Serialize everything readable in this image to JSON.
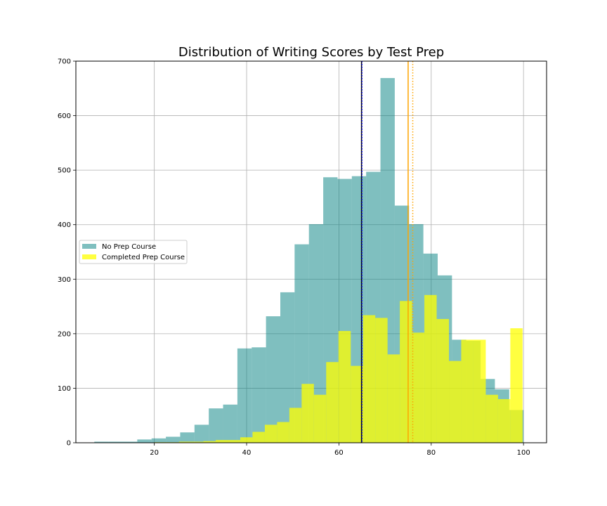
{
  "chart_data": {
    "type": "histogram",
    "title": "Distribution of Writing Scores by Test Prep",
    "xlabel": "",
    "ylabel": "",
    "xlim": [
      3,
      105
    ],
    "ylim": [
      0,
      700
    ],
    "x_ticks": [
      20,
      40,
      60,
      80,
      100
    ],
    "y_ticks": [
      0,
      100,
      200,
      300,
      400,
      500,
      600,
      700
    ],
    "grid": true,
    "legend_position": "center-left",
    "series": [
      {
        "name": "No Prep Course",
        "color": "#008080",
        "opacity": 0.5,
        "bin_width": 3.1,
        "bins": [
          {
            "x0": 7.0,
            "count": 2
          },
          {
            "x0": 10.1,
            "count": 2
          },
          {
            "x0": 13.2,
            "count": 2
          },
          {
            "x0": 16.3,
            "count": 6
          },
          {
            "x0": 19.4,
            "count": 8
          },
          {
            "x0": 22.5,
            "count": 11
          },
          {
            "x0": 25.6,
            "count": 19
          },
          {
            "x0": 28.7,
            "count": 33
          },
          {
            "x0": 31.8,
            "count": 63
          },
          {
            "x0": 34.9,
            "count": 70
          },
          {
            "x0": 38.0,
            "count": 173
          },
          {
            "x0": 41.1,
            "count": 175
          },
          {
            "x0": 44.2,
            "count": 232
          },
          {
            "x0": 47.3,
            "count": 276
          },
          {
            "x0": 50.4,
            "count": 364
          },
          {
            "x0": 53.5,
            "count": 401
          },
          {
            "x0": 56.6,
            "count": 487
          },
          {
            "x0": 59.7,
            "count": 484
          },
          {
            "x0": 62.8,
            "count": 489
          },
          {
            "x0": 65.9,
            "count": 497
          },
          {
            "x0": 69.0,
            "count": 669
          },
          {
            "x0": 72.1,
            "count": 435
          },
          {
            "x0": 75.2,
            "count": 401
          },
          {
            "x0": 78.3,
            "count": 347
          },
          {
            "x0": 81.4,
            "count": 307
          },
          {
            "x0": 84.5,
            "count": 189
          },
          {
            "x0": 87.6,
            "count": 187
          },
          {
            "x0": 90.7,
            "count": 117
          },
          {
            "x0": 93.8,
            "count": 98
          },
          {
            "x0": 96.9,
            "count": 60
          }
        ]
      },
      {
        "name": "Completed Prep Course",
        "color": "#ffff00",
        "opacity": 0.75,
        "bin_width": 2.66,
        "bins": [
          {
            "x0": 20.0,
            "count": 1
          },
          {
            "x0": 22.66,
            "count": 1
          },
          {
            "x0": 25.32,
            "count": 2
          },
          {
            "x0": 27.98,
            "count": 2
          },
          {
            "x0": 30.64,
            "count": 3
          },
          {
            "x0": 33.3,
            "count": 5
          },
          {
            "x0": 35.96,
            "count": 5
          },
          {
            "x0": 38.62,
            "count": 10
          },
          {
            "x0": 41.28,
            "count": 20
          },
          {
            "x0": 43.94,
            "count": 33
          },
          {
            "x0": 46.6,
            "count": 38
          },
          {
            "x0": 49.26,
            "count": 64
          },
          {
            "x0": 51.92,
            "count": 108
          },
          {
            "x0": 54.58,
            "count": 88
          },
          {
            "x0": 57.24,
            "count": 148
          },
          {
            "x0": 59.9,
            "count": 205
          },
          {
            "x0": 62.56,
            "count": 141
          },
          {
            "x0": 65.22,
            "count": 234
          },
          {
            "x0": 67.88,
            "count": 229
          },
          {
            "x0": 70.54,
            "count": 162
          },
          {
            "x0": 73.2,
            "count": 260
          },
          {
            "x0": 75.86,
            "count": 202
          },
          {
            "x0": 78.52,
            "count": 271
          },
          {
            "x0": 81.18,
            "count": 227
          },
          {
            "x0": 83.84,
            "count": 150
          },
          {
            "x0": 86.5,
            "count": 189
          },
          {
            "x0": 89.16,
            "count": 189
          },
          {
            "x0": 91.82,
            "count": 88
          },
          {
            "x0": 94.48,
            "count": 80
          },
          {
            "x0": 97.14,
            "count": 210
          }
        ]
      }
    ],
    "vlines": [
      {
        "x": 64.9,
        "color": "#000000",
        "style": "solid"
      },
      {
        "x": 65.0,
        "color": "#0000ff",
        "style": "dotted"
      },
      {
        "x": 75.0,
        "color": "#ffa500",
        "style": "solid"
      },
      {
        "x": 76.0,
        "color": "#ffa500",
        "style": "dotted"
      }
    ]
  }
}
